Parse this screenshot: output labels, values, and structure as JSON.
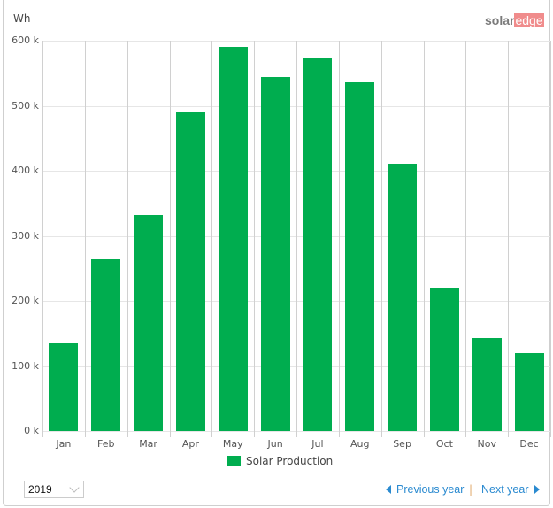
{
  "header": {
    "unit": "Wh",
    "logo": {
      "part1": "solar",
      "part2": "edge"
    }
  },
  "colors": {
    "bar": "#00ad4f",
    "link": "#2a8ad0",
    "logo_accent": "#f08c8c"
  },
  "chart_data": {
    "type": "bar",
    "title": "",
    "xlabel": "",
    "ylabel": "Wh",
    "categories": [
      "Jan",
      "Feb",
      "Mar",
      "Apr",
      "May",
      "Jun",
      "Jul",
      "Aug",
      "Sep",
      "Oct",
      "Nov",
      "Dec"
    ],
    "series": [
      {
        "name": "Solar Production",
        "values": [
          135000,
          264000,
          332000,
          491000,
          590000,
          544000,
          573000,
          536000,
          411000,
          220000,
          143000,
          120000
        ]
      }
    ],
    "ylim": [
      0,
      600000
    ],
    "yticks": [
      "0 k",
      "100 k",
      "200 k",
      "300 k",
      "400 k",
      "500 k",
      "600 k"
    ],
    "grid": true,
    "legend_position": "bottom"
  },
  "legend": {
    "label": "Solar Production"
  },
  "footer": {
    "year_select": "2019",
    "previous": "Previous year",
    "separator": "|",
    "next": "Next year"
  }
}
